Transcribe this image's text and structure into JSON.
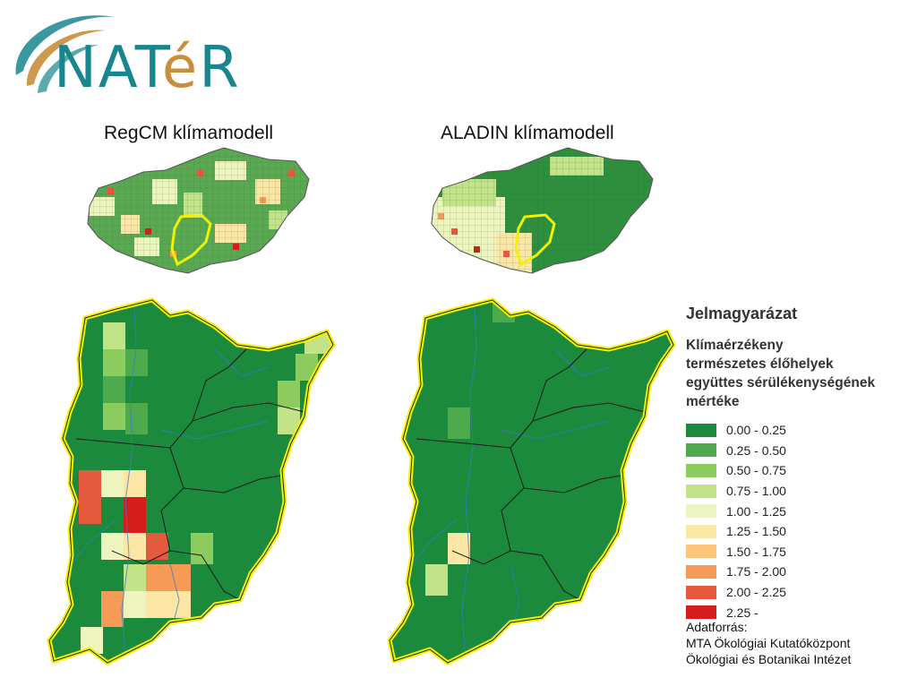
{
  "logo": {
    "text_part1": "NAT",
    "text_e": "é",
    "text_part2": "R",
    "colors": {
      "teal": "#17868f",
      "gold": "#c98e3a"
    }
  },
  "maps": [
    {
      "title": "RegCM klímamodell",
      "country_base_color": "#5aa852",
      "county_base_color": "#1c8a3c"
    },
    {
      "title": "ALADIN klímamodell",
      "country_base_color": "#2e8f3e",
      "county_base_color": "#1c8a3c"
    }
  ],
  "highlight_color": "#f2f200",
  "legend": {
    "heading": "Jelmagyarázat",
    "description_lines": [
      "Klímaérzékeny",
      "természetes élőhelyek",
      "együttes sérülékenységének",
      "mértéke"
    ],
    "classes": [
      {
        "label": "0.00 - 0.25",
        "color": "#1c8a3c"
      },
      {
        "label": "0.25 - 0.50",
        "color": "#4daa4d"
      },
      {
        "label": "0.50 - 0.75",
        "color": "#8ccc5e"
      },
      {
        "label": "0.75 - 1.00",
        "color": "#c2e387"
      },
      {
        "label": "1.00 - 1.25",
        "color": "#eef4be"
      },
      {
        "label": "1.25 - 1.50",
        "color": "#fbe6a6"
      },
      {
        "label": "1.50 - 1.75",
        "color": "#fbc57c"
      },
      {
        "label": "1.75 - 2.00",
        "color": "#f59a57"
      },
      {
        "label": "2.00 - 2.25",
        "color": "#e5593c"
      },
      {
        "label": "2.25 -",
        "color": "#d41d1d"
      }
    ]
  },
  "source": {
    "label": "Adatforrás:",
    "line1": "MTA Ökológiai Kutatóközpont",
    "line2": "Ökológiai és Botanikai Intézet"
  }
}
